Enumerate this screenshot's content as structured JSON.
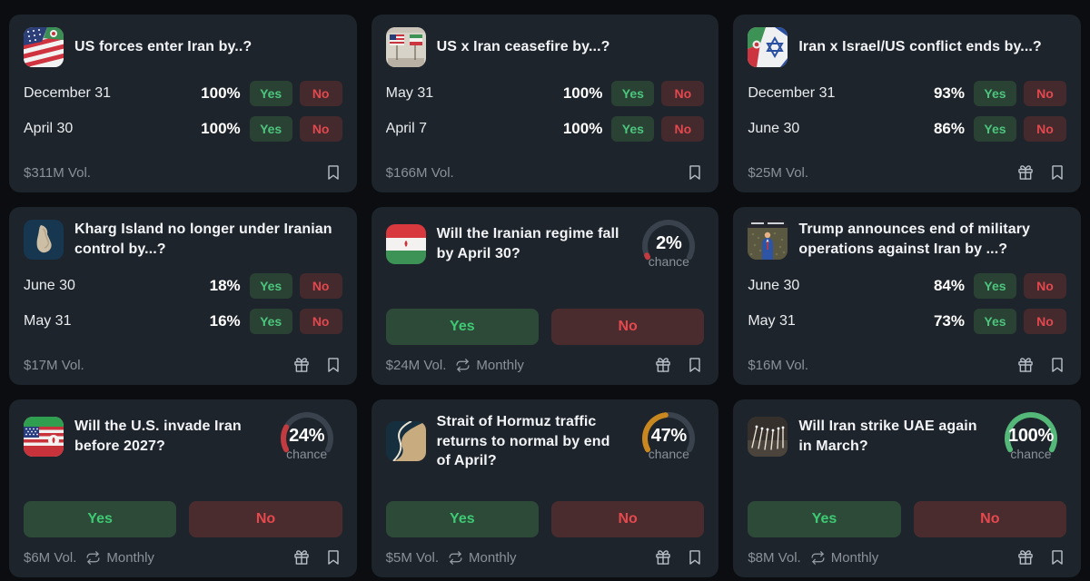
{
  "colors": {
    "page_bg": "#0b0d10",
    "card_bg": "#1e242b",
    "yes_text": "#3ec973",
    "yes_bg": "#2d4a39",
    "no_text": "#e5484d",
    "no_bg": "#4a2c2f",
    "gauge_track": "#3a434d",
    "gauge_red": "#c23b40",
    "gauge_amber": "#c9881f",
    "gauge_green": "#54b878"
  },
  "cards": [
    {
      "title": "US forces enter Iran by..?",
      "icon": "us-iran-flags-icon",
      "type": "multi",
      "yes_label": "Yes",
      "no_label": "No",
      "outcomes": [
        {
          "label": "December 31",
          "percent": "100%"
        },
        {
          "label": "April 30",
          "percent": "100%"
        }
      ],
      "volume": "$311M Vol.",
      "footer_icons": [
        "bookmark-icon"
      ]
    },
    {
      "title": "US x Iran ceasefire by...?",
      "icon": "us-iran-table-flags-icon",
      "type": "multi",
      "yes_label": "Yes",
      "no_label": "No",
      "outcomes": [
        {
          "label": "May 31",
          "percent": "100%"
        },
        {
          "label": "April 7",
          "percent": "100%"
        }
      ],
      "volume": "$166M Vol.",
      "footer_icons": [
        "bookmark-icon"
      ]
    },
    {
      "title": "Iran x Israel/US conflict ends by...?",
      "icon": "iran-israel-flags-icon",
      "type": "multi",
      "yes_label": "Yes",
      "no_label": "No",
      "outcomes": [
        {
          "label": "December 31",
          "percent": "93%"
        },
        {
          "label": "June 30",
          "percent": "86%"
        }
      ],
      "volume": "$25M Vol.",
      "footer_icons": [
        "gift-icon",
        "bookmark-icon"
      ]
    },
    {
      "title": "Kharg Island no longer under Iranian control by...?",
      "icon": "kharg-island-icon",
      "type": "multi",
      "yes_label": "Yes",
      "no_label": "No",
      "outcomes": [
        {
          "label": "June 30",
          "percent": "18%"
        },
        {
          "label": "May 31",
          "percent": "16%"
        }
      ],
      "volume": "$17M Vol.",
      "footer_icons": [
        "gift-icon",
        "bookmark-icon"
      ]
    },
    {
      "title": "Will the Iranian regime fall by April 30?",
      "icon": "iran-flag-icon",
      "type": "binary",
      "yes_label": "Yes",
      "no_label": "No",
      "chance": {
        "value": "2%",
        "label": "chance",
        "pct": 2,
        "color": "#c23b40"
      },
      "volume": "$24M Vol.",
      "recurrence": "Monthly",
      "recurrence_icon": "repeat-icon",
      "footer_icons": [
        "gift-icon",
        "bookmark-icon"
      ]
    },
    {
      "title": "Trump announces end of military operations against Iran by ...?",
      "icon": "trump-rally-photo-icon",
      "type": "multi",
      "yes_label": "Yes",
      "no_label": "No",
      "outcomes": [
        {
          "label": "June 30",
          "percent": "84%"
        },
        {
          "label": "May 31",
          "percent": "73%"
        }
      ],
      "volume": "$16M Vol.",
      "footer_icons": [
        "gift-icon",
        "bookmark-icon"
      ]
    },
    {
      "title": "Will the U.S. invade Iran before 2027?",
      "icon": "us-iran-blend-flag-icon",
      "type": "binary",
      "yes_label": "Yes",
      "no_label": "No",
      "chance": {
        "value": "24%",
        "label": "chance",
        "pct": 24,
        "color": "#c23b40"
      },
      "volume": "$6M Vol.",
      "recurrence": "Monthly",
      "recurrence_icon": "repeat-icon",
      "footer_icons": [
        "gift-icon",
        "bookmark-icon"
      ]
    },
    {
      "title": "Strait of Hormuz traffic returns to normal by end of April?",
      "icon": "hormuz-strait-satellite-icon",
      "type": "binary",
      "yes_label": "Yes",
      "no_label": "No",
      "chance": {
        "value": "47%",
        "label": "chance",
        "pct": 47,
        "color": "#c9881f"
      },
      "volume": "$5M Vol.",
      "recurrence": "Monthly",
      "recurrence_icon": "repeat-icon",
      "footer_icons": [
        "gift-icon",
        "bookmark-icon"
      ]
    },
    {
      "title": "Will Iran strike UAE again in March?",
      "icon": "missiles-night-photo-icon",
      "type": "binary",
      "yes_label": "Yes",
      "no_label": "No",
      "chance": {
        "value": "100%",
        "label": "chance",
        "pct": 100,
        "color": "#54b878"
      },
      "volume": "$8M Vol.",
      "recurrence": "Monthly",
      "recurrence_icon": "repeat-icon",
      "footer_icons": [
        "gift-icon",
        "bookmark-icon"
      ]
    }
  ]
}
